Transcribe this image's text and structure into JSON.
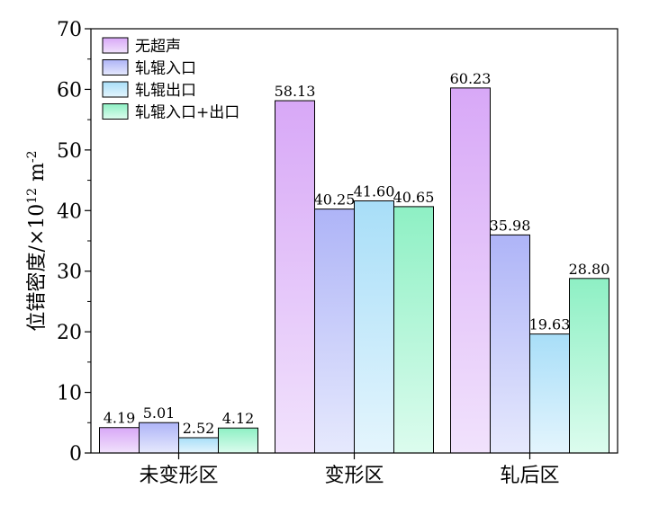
{
  "chart_data": {
    "type": "bar",
    "title": "",
    "xlabel": "",
    "ylabel": "位错密度/×10",
    "ylabel_exp1": "12",
    "ylabel_unit": " m",
    "ylabel_exp2": "-2",
    "ylim": [
      0,
      70
    ],
    "yticks": [
      0,
      10,
      20,
      30,
      40,
      50,
      60,
      70
    ],
    "grid": false,
    "legend_position": "top-left",
    "categories": [
      "未变形区",
      "变形区",
      "轧后区"
    ],
    "series": [
      {
        "name": "无超声",
        "values": [
          4.19,
          58.13,
          60.23
        ],
        "color_top": "#d8a8f7",
        "color_bottom": "#f1e2fc",
        "show_labels": [
          true,
          true,
          true
        ]
      },
      {
        "name": "轧辊入口",
        "values": [
          5.01,
          40.25,
          35.98
        ],
        "color_top": "#aeb4f7",
        "color_bottom": "#e6e9fd",
        "show_labels": [
          true,
          true,
          true
        ]
      },
      {
        "name": "轧辊出口",
        "values": [
          2.52,
          41.6,
          19.63
        ],
        "color_top": "#a8def8",
        "color_bottom": "#e4f5fd",
        "show_labels": [
          true,
          true,
          true
        ]
      },
      {
        "name": "轧辊入口+出口",
        "values": [
          4.12,
          40.65,
          28.8
        ],
        "color_top": "#8ef0c4",
        "color_bottom": "#dcfcee",
        "show_labels": [
          true,
          true,
          true
        ]
      }
    ],
    "value_labels": [
      [
        "4.19",
        "58.13",
        "60.23"
      ],
      [
        "5.01",
        "40.25",
        "35.98"
      ],
      [
        "2.52",
        "41.60",
        "19.63"
      ],
      [
        "4.12",
        "40.65",
        "28.80"
      ]
    ]
  }
}
